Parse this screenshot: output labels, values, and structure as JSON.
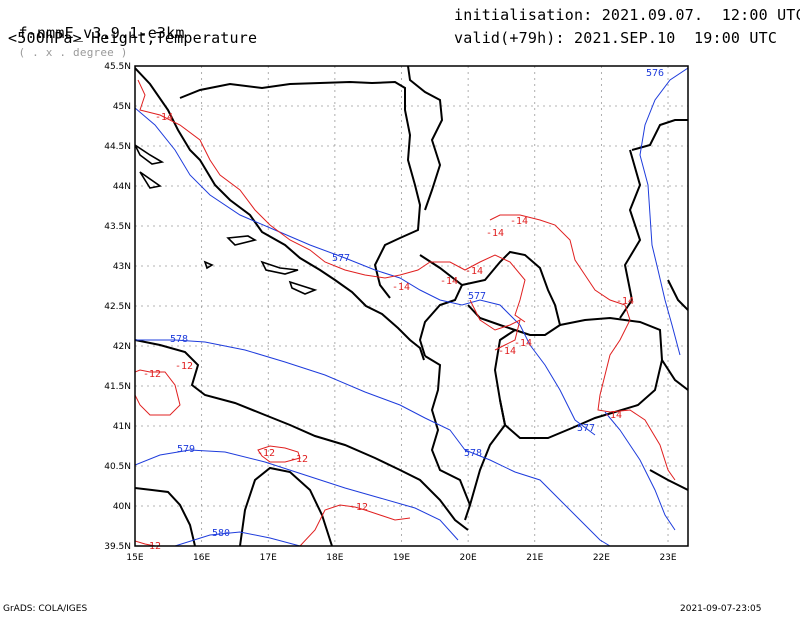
{
  "header": {
    "model": "f-nmmE_v3.9.1-e3km",
    "units": "( . x . degree )",
    "level": "<500hPa> Height,Temperature",
    "init": "initialisation: 2021.09.07.  12:00 UTC",
    "valid": "valid(+79h): 2021.SEP.10  19:00 UTC"
  },
  "axes": {
    "lon_labels": [
      "15E",
      "16E",
      "17E",
      "18E",
      "19E",
      "20E",
      "21E",
      "22E",
      "23E"
    ],
    "lat_labels": [
      "39.5N",
      "40N",
      "40.5N",
      "41N",
      "41.5N",
      "42N",
      "42.5N",
      "43N",
      "43.5N",
      "44N",
      "44.5N",
      "45N",
      "45.5N"
    ],
    "lon_range": [
      15,
      23.3
    ],
    "lat_range": [
      39.5,
      45.5
    ]
  },
  "contours": {
    "height_color": "#1e3cdc",
    "temp_color": "#e02020",
    "height_labels": [
      "576",
      "577",
      "577",
      "578",
      "578",
      "579",
      "577",
      "580"
    ],
    "temp_labels": [
      "-14",
      "-14",
      "-14",
      "-14",
      "-14",
      "-14",
      "-14",
      "-14",
      "-14",
      "-14",
      "-12",
      "-12",
      "-12",
      "-12",
      "-12",
      "-12"
    ]
  },
  "footer": {
    "left": "GrADS: COLA/IGES",
    "right": "2021-09-07-23:05"
  }
}
